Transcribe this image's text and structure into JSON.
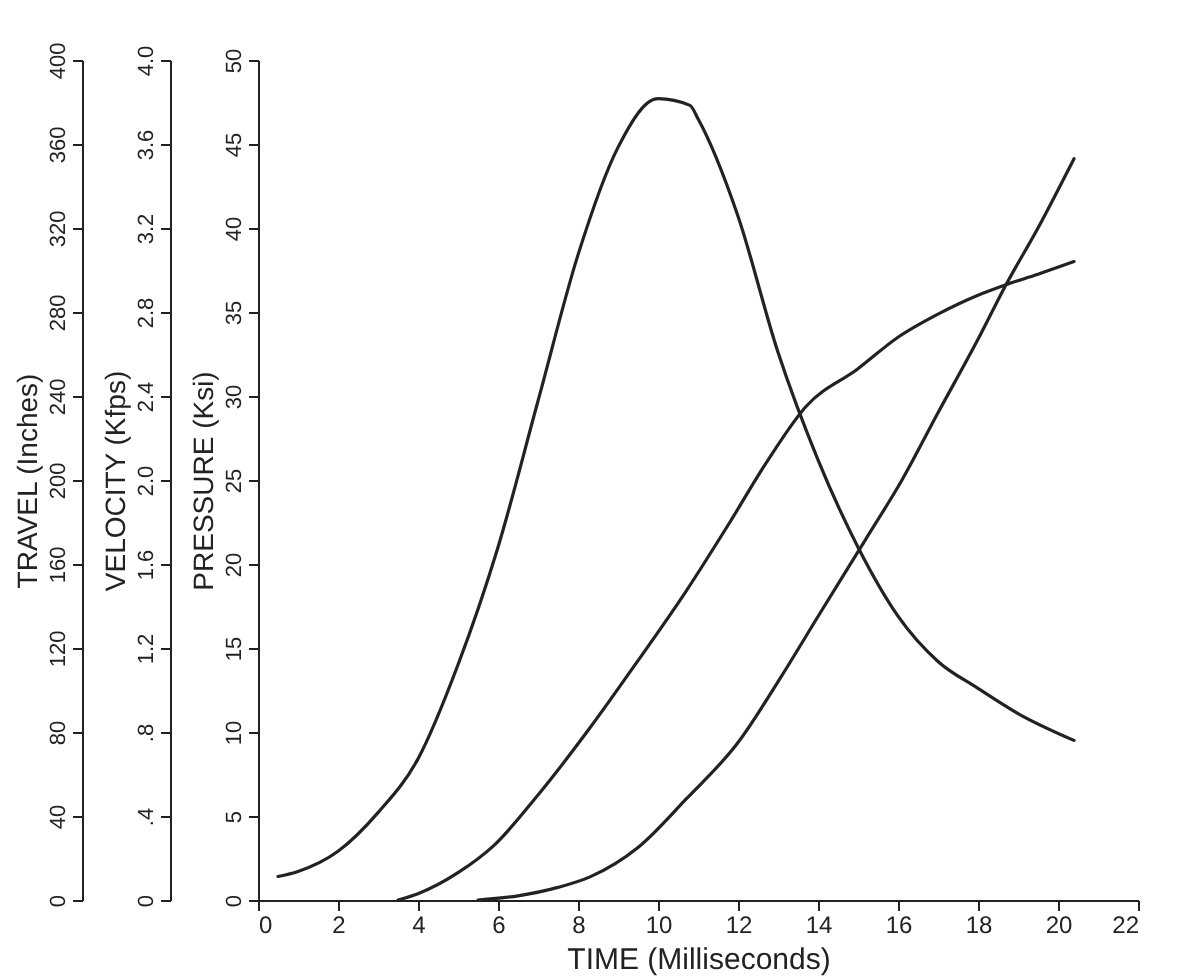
{
  "chart_data": {
    "type": "line",
    "xlabel": "TIME (Milliseconds)",
    "ylabel": "PRESSURE (Ksi)",
    "y2label": "VELOCITY (Kfps)",
    "y3label": "TRAVEL (Inches)",
    "xlim": [
      0,
      22
    ],
    "xticks": [
      0,
      2,
      4,
      6,
      8,
      10,
      12,
      14,
      16,
      18,
      20,
      22
    ],
    "ylim": [
      0,
      50
    ],
    "yticks": [
      0,
      5,
      10,
      15,
      20,
      25,
      30,
      35,
      40,
      45,
      50
    ],
    "y2lim": [
      0,
      4
    ],
    "y2ticks": [
      0,
      {
        "value": 0.4,
        "label": ".4"
      },
      {
        "value": 0.8,
        "label": ".8"
      },
      1.2,
      1.6,
      {
        "value": 2,
        "label": "2.0"
      },
      2.4,
      2.8,
      3.2,
      3.6,
      {
        "value": 4,
        "label": "4.0"
      }
    ],
    "y3lim": [
      0,
      400
    ],
    "y3ticks": [
      0,
      40,
      80,
      120,
      160,
      200,
      240,
      280,
      320,
      360,
      400
    ],
    "grid": false,
    "line_style": "solid",
    "marker": "none",
    "series": [
      {
        "color": "#222222",
        "x": [
          0.5,
          1,
          2,
          3,
          4,
          5,
          6,
          7,
          8,
          9,
          10,
          10.8,
          11,
          12,
          13,
          14,
          15,
          16,
          17,
          18,
          19,
          20.4
        ],
        "values": [
          1.4,
          1.7,
          2.9,
          5.2,
          8.4,
          14,
          21,
          29.7,
          38.4,
          44.8,
          47.7,
          47.3,
          46.5,
          40.7,
          32.6,
          26.2,
          21,
          16.9,
          14.2,
          12.6,
          11.1,
          9.5
        ]
      },
      {
        "color": "#222222",
        "axis": "y2",
        "x": [
          3.5,
          4,
          5,
          5.9,
          7,
          8.3,
          9.5,
          10.7,
          11.8,
          12.7,
          13.7,
          15,
          16,
          17,
          18,
          18.7,
          19.5,
          20.4
        ],
        "values": [
          0,
          0.03,
          0.13,
          0.26,
          0.5,
          0.82,
          1.14,
          1.47,
          1.8,
          2.08,
          2.35,
          2.53,
          2.68,
          2.79,
          2.88,
          2.93,
          2.98,
          3.04
        ]
      },
      {
        "color": "#222222",
        "axis": "y3",
        "x": [
          5.5,
          6.5,
          7.5,
          8.3,
          9.5,
          10.7,
          12,
          13.1,
          14,
          15.2,
          16.1,
          17,
          18,
          18.7,
          19.5,
          20.4
        ],
        "values": [
          0,
          2,
          6,
          11,
          25,
          48,
          75,
          107,
          135,
          172,
          200,
          232,
          267,
          293,
          320,
          353
        ]
      }
    ]
  }
}
